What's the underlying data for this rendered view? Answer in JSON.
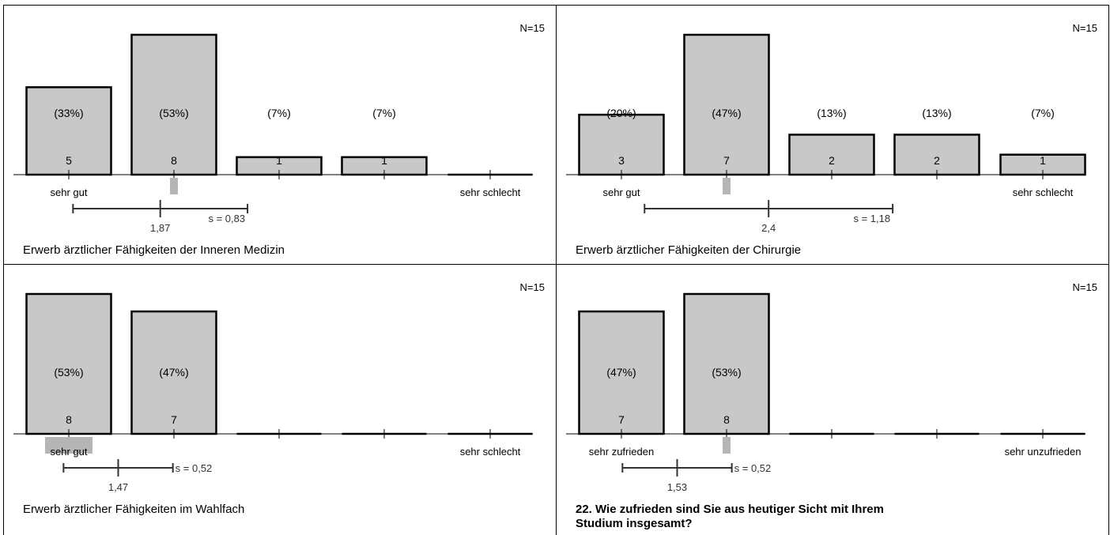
{
  "chart_data": [
    {
      "type": "bar",
      "title": "Erwerb ärztlicher Fähigkeiten der Inneren Medizin",
      "n_label": "N=15",
      "categories": [
        "1",
        "2",
        "3",
        "4",
        "5"
      ],
      "values": [
        5,
        8,
        1,
        1,
        0
      ],
      "value_labels": [
        "5",
        "8",
        "1",
        "1",
        ""
      ],
      "percent_labels": [
        "(33%)",
        "(53%)",
        "(7%)",
        "(7%)",
        ""
      ],
      "left_anchor": "sehr gut",
      "right_anchor": "sehr schlecht",
      "mean": 1.87,
      "mean_label": "1,87",
      "sd": 0.83,
      "sd_label": "s = 0,83",
      "median": 2,
      "ylim": [
        0,
        8
      ],
      "grid": false
    },
    {
      "type": "bar",
      "title": "Erwerb ärztlicher Fähigkeiten der Chirurgie",
      "n_label": "N=15",
      "categories": [
        "1",
        "2",
        "3",
        "4",
        "5"
      ],
      "values": [
        3,
        7,
        2,
        2,
        1
      ],
      "value_labels": [
        "3",
        "7",
        "2",
        "2",
        "1"
      ],
      "percent_labels": [
        "(20%)",
        "(47%)",
        "(13%)",
        "(13%)",
        "(7%)"
      ],
      "left_anchor": "sehr gut",
      "right_anchor": "sehr schlecht",
      "mean": 2.4,
      "mean_label": "2,4",
      "sd": 1.18,
      "sd_label": "s = 1,18",
      "median": 2,
      "ylim": [
        0,
        7
      ],
      "grid": false
    },
    {
      "type": "bar",
      "title": "Erwerb ärztlicher Fähigkeiten im Wahlfach",
      "n_label": "N=15",
      "categories": [
        "1",
        "2",
        "3",
        "4",
        "5"
      ],
      "values": [
        8,
        7,
        0,
        0,
        0
      ],
      "value_labels": [
        "8",
        "7",
        "",
        "",
        ""
      ],
      "percent_labels": [
        "(53%)",
        "(47%)",
        "",
        "",
        ""
      ],
      "left_anchor": "sehr gut",
      "right_anchor": "sehr schlecht",
      "mean": 1.47,
      "mean_label": "1,47",
      "sd": 0.52,
      "sd_label": "s = 0,52",
      "median": 1,
      "ylim": [
        0,
        8
      ],
      "grid": false
    },
    {
      "type": "bar",
      "title": "22. Wie zufrieden sind Sie aus heutiger Sicht mit Ihrem Studium insgesamt?",
      "title_bold": true,
      "n_label": "N=15",
      "categories": [
        "1",
        "2",
        "3",
        "4",
        "5"
      ],
      "values": [
        7,
        8,
        0,
        0,
        0
      ],
      "value_labels": [
        "7",
        "8",
        "",
        "",
        ""
      ],
      "percent_labels": [
        "(47%)",
        "(53%)",
        "",
        "",
        ""
      ],
      "left_anchor": "sehr zufrieden",
      "right_anchor": "sehr unzufrieden",
      "mean": 1.53,
      "mean_label": "1,53",
      "sd": 0.52,
      "sd_label": "s = 0,52",
      "median": 2,
      "ylim": [
        0,
        8
      ],
      "grid": false
    }
  ]
}
